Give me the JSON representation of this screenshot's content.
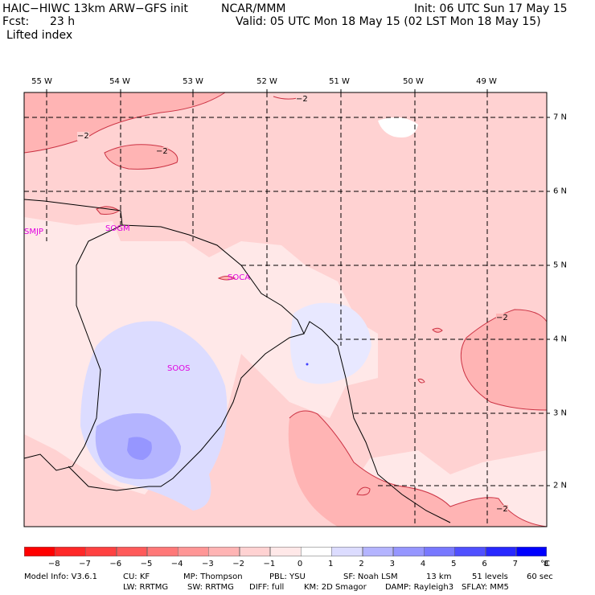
{
  "header": {
    "model": "HAIC−HIWC 13km ARW−GFS init",
    "center": "NCAR/MMM",
    "init": "Init: 06 UTC Sun 17 May 15",
    "fcst_label": "Fcst:",
    "fcst_value": "23 h",
    "valid": "Valid: 05 UTC Mon 18 May 15 (02 LST Mon 18 May 15)",
    "field": "Lifted index"
  },
  "map": {
    "lon_labels": [
      "55 W",
      "54 W",
      "53 W",
      "52 W",
      "51 W",
      "50 W",
      "49 W"
    ],
    "lat_labels": [
      "7 N",
      "6 N",
      "5 N",
      "4 N",
      "3 N",
      "2 N"
    ],
    "stations": [
      "SMJP",
      "SOGM",
      "SOCA",
      "SOOS"
    ],
    "contour_labels": [
      "−2",
      "−2",
      "−2",
      "−2",
      "−2"
    ]
  },
  "colorbar": {
    "ticks": [
      "−8",
      "−7",
      "−6",
      "−5",
      "−4",
      "−3",
      "−2",
      "−1",
      "0",
      "1",
      "2",
      "3",
      "4",
      "5",
      "6",
      "7",
      "8"
    ],
    "unit": "°C",
    "colors": [
      "#ff0000",
      "#ff2828",
      "#ff4141",
      "#ff5a5a",
      "#ff7878",
      "#ff9696",
      "#ffb4b4",
      "#ffd2d2",
      "#ffe8e8",
      "#ffffff",
      "#dcdcff",
      "#b4b4ff",
      "#9696ff",
      "#7878ff",
      "#5050ff",
      "#2828ff",
      "#0000ff"
    ]
  },
  "footer": {
    "line1": [
      "Model Info: V3.6.1",
      "CU: KF",
      "MP: Thompson",
      "PBL: YSU",
      "SF: Noah LSM",
      "13 km",
      "51 levels",
      "60 sec"
    ],
    "line2": [
      "LW: RRTMG",
      "SW: RRTMG",
      "DIFF: full",
      "KM: 2D Smagor",
      "DAMP: Rayleigh3",
      "SFLAY: MM5"
    ]
  }
}
